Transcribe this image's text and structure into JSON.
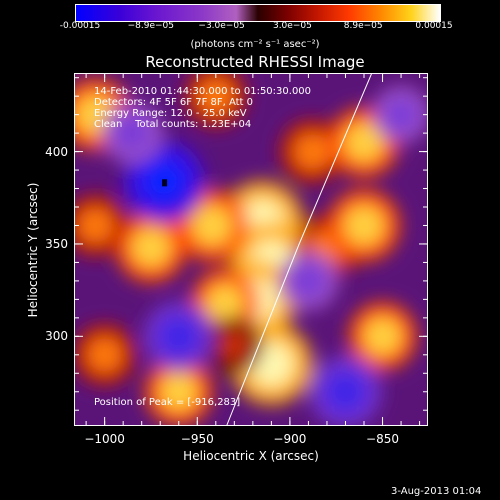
{
  "colorbar": {
    "ticks": [
      "-0.00015",
      "−8.9e−05",
      "−3.0e−05",
      "3.0e−05",
      "8.9e−05",
      "0.00015"
    ],
    "units": "(photons cm⁻² s⁻¹ asec⁻²)"
  },
  "title": "Reconstructed RHESSI Image",
  "info": {
    "time": "14-Feb-2010 01:44:30.000 to 01:50:30.000",
    "detectors": "Detectors: 4F 5F 6F 7F 8F, Att 0",
    "energy": "Energy Range: 12.0 - 25.0 keV",
    "clean": "Clean    Total counts: 1.23E+04"
  },
  "peak": "Position of Peak = [-916,283]",
  "axes": {
    "xlabel": "Heliocentric X (arcsec)",
    "ylabel": "Heliocentric Y (arcsec)",
    "xticks": [
      "−1000",
      "−950",
      "−900",
      "−850"
    ],
    "yticks": [
      "400",
      "350",
      "300"
    ]
  },
  "footer": "3-Aug-2013 01:04",
  "chart_data": {
    "type": "heatmap",
    "title": "Reconstructed RHESSI Image",
    "xlabel": "Heliocentric X (arcsec)",
    "ylabel": "Heliocentric Y (arcsec)",
    "xlim": [
      -1016,
      -826
    ],
    "ylim": [
      252,
      442
    ],
    "colorbar_range": [
      -0.00015,
      0.00015
    ],
    "peak": [
      -916,
      283
    ],
    "limb_line": [
      [
        -934,
        252
      ],
      [
        -895,
        350
      ],
      [
        -856,
        442
      ]
    ],
    "blobs": [
      {
        "x": -915,
        "y": 362,
        "v": 1.0
      },
      {
        "x": -910,
        "y": 340,
        "v": 1.0
      },
      {
        "x": -918,
        "y": 320,
        "v": 0.95
      },
      {
        "x": -910,
        "y": 285,
        "v": 1.0
      },
      {
        "x": -942,
        "y": 360,
        "v": 0.8
      },
      {
        "x": -935,
        "y": 318,
        "v": 0.7
      },
      {
        "x": -975,
        "y": 348,
        "v": 0.75
      },
      {
        "x": -880,
        "y": 348,
        "v": 0.6
      },
      {
        "x": -860,
        "y": 360,
        "v": 0.8
      },
      {
        "x": -850,
        "y": 300,
        "v": 0.7
      },
      {
        "x": -888,
        "y": 400,
        "v": 0.6
      },
      {
        "x": -860,
        "y": 405,
        "v": 0.75
      },
      {
        "x": -1005,
        "y": 420,
        "v": 0.8
      },
      {
        "x": -1005,
        "y": 360,
        "v": 0.55
      },
      {
        "x": -1000,
        "y": 290,
        "v": 0.55
      },
      {
        "x": -960,
        "y": 270,
        "v": 0.7
      },
      {
        "x": -940,
        "y": 430,
        "v": 0.55
      },
      {
        "x": -930,
        "y": 295,
        "v": 0.45
      },
      {
        "x": -968,
        "y": 384,
        "v": -1.0
      },
      {
        "x": -960,
        "y": 300,
        "v": -0.75
      },
      {
        "x": -870,
        "y": 270,
        "v": -0.8
      },
      {
        "x": -985,
        "y": 410,
        "v": -0.55
      },
      {
        "x": -890,
        "y": 330,
        "v": -0.5
      },
      {
        "x": -840,
        "y": 420,
        "v": -0.45
      }
    ]
  }
}
